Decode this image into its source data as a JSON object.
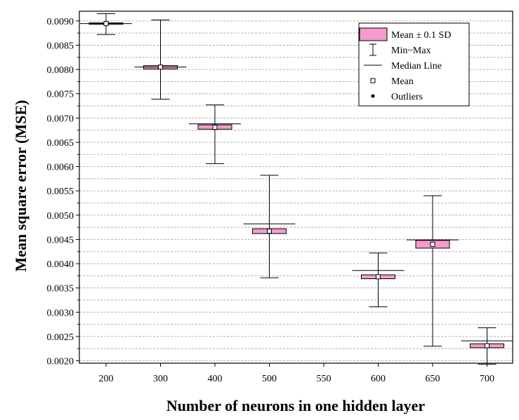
{
  "chart_data": {
    "type": "box",
    "xlabel": "Number of neurons in one hidden layer",
    "ylabel": "Mean square error (MSE)",
    "x_categories": [
      "200",
      "300",
      "400",
      "500",
      "550",
      "600",
      "650",
      "700"
    ],
    "ylim": [
      0.00195,
      0.0092
    ],
    "y_ticks": [
      "0.0020",
      "0.0025",
      "0.0030",
      "0.0035",
      "0.0040",
      "0.0045",
      "0.0050",
      "0.0055",
      "0.0060",
      "0.0065",
      "0.0070",
      "0.0075",
      "0.0080",
      "0.0085",
      "0.0090"
    ],
    "grid": true,
    "legend_position": "top-right",
    "legend": [
      {
        "key": "box",
        "label": "Mean ± 0.1 SD"
      },
      {
        "key": "whisker",
        "label": "Min~Max"
      },
      {
        "key": "median",
        "label": "Median Line"
      },
      {
        "key": "mean",
        "label": "Mean"
      },
      {
        "key": "outlier",
        "label": "Outliers"
      }
    ],
    "colors": {
      "box_fill": "#f49ccd",
      "box_stroke": "#000000",
      "grid": "#b0b0b0"
    },
    "boxes": [
      {
        "x": "200",
        "min": 0.00872,
        "max": 0.00915,
        "box_low": 0.00893,
        "box_high": 0.00896,
        "median": 0.008945,
        "mean": 0.008945
      },
      {
        "x": "300",
        "min": 0.00739,
        "max": 0.00902,
        "box_low": 0.00801,
        "box_high": 0.00808,
        "median": 0.00805,
        "mean": 0.00805
      },
      {
        "x": "400",
        "min": 0.00606,
        "max": 0.00727,
        "box_low": 0.00677,
        "box_high": 0.00686,
        "median": 0.00688,
        "mean": 0.00681
      },
      {
        "x": "500",
        "min": 0.00371,
        "max": 0.00582,
        "box_low": 0.00462,
        "box_high": 0.00472,
        "median": 0.00482,
        "mean": 0.00467
      },
      {
        "x": "600",
        "min": 0.00311,
        "max": 0.00422,
        "box_low": 0.00369,
        "box_high": 0.00377,
        "median": 0.00386,
        "mean": 0.00373
      },
      {
        "x": "650",
        "min": 0.0023,
        "max": 0.0054,
        "box_low": 0.00432,
        "box_high": 0.00448,
        "median": 0.00449,
        "mean": 0.0044
      },
      {
        "x": "700",
        "min": 0.00193,
        "max": 0.00268,
        "box_low": 0.00227,
        "box_high": 0.00235,
        "median": 0.00241,
        "mean": 0.00231
      }
    ]
  }
}
